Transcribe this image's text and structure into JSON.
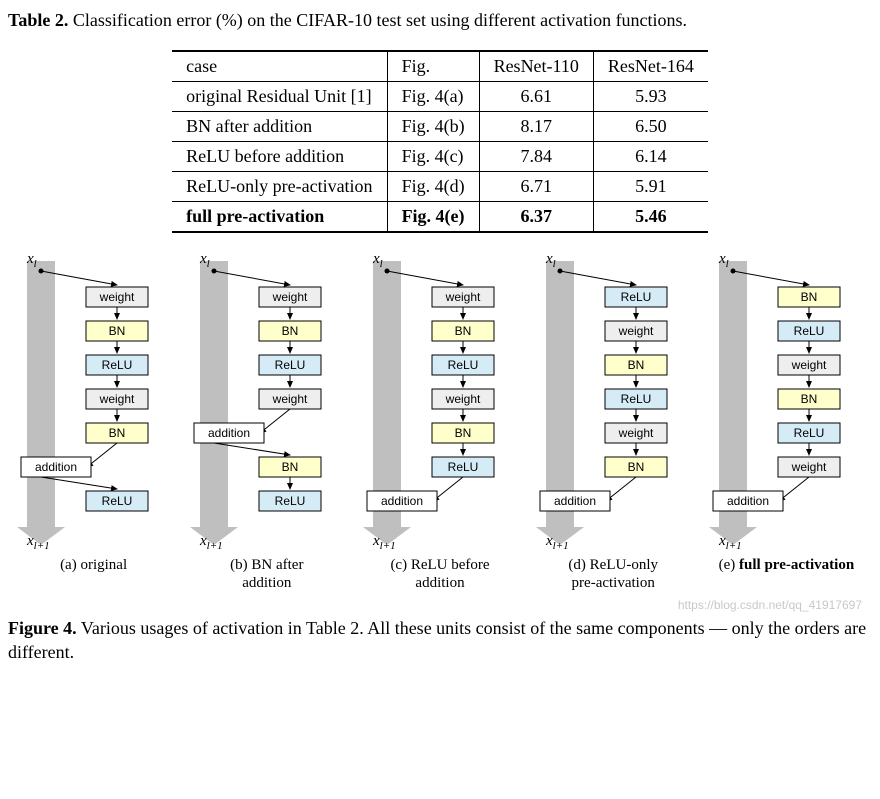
{
  "table": {
    "caption_bold": "Table 2.",
    "caption_rest": " Classification error (%) on the CIFAR-10 test set using different activation functions.",
    "columns": [
      "case",
      "Fig.",
      "ResNet-110",
      "ResNet-164"
    ],
    "rows": [
      {
        "case": "original Residual Unit [1]",
        "fig": "Fig. 4(a)",
        "r110": "6.61",
        "r164": "5.93",
        "bold": false
      },
      {
        "case": "BN after addition",
        "fig": "Fig. 4(b)",
        "r110": "8.17",
        "r164": "6.50",
        "bold": false
      },
      {
        "case": "ReLU before addition",
        "fig": "Fig. 4(c)",
        "r110": "7.84",
        "r164": "6.14",
        "bold": false
      },
      {
        "case": "ReLU-only pre-activation",
        "fig": "Fig. 4(d)",
        "r110": "6.71",
        "r164": "5.91",
        "bold": false
      },
      {
        "case": "full pre-activation",
        "fig": "Fig. 4(e)",
        "r110": "6.37",
        "r164": "5.46",
        "bold": true
      }
    ]
  },
  "figure": {
    "x_in": "x",
    "x_in_sub": "l",
    "x_out": "x",
    "x_out_sub": "l+1",
    "colors": {
      "arrow": "#bfbfbf",
      "stroke": "#000000",
      "weight": "#eeeeee",
      "bn": "#ffffcc",
      "relu": "#d5ecf7",
      "add": "#ffffff",
      "text": "#000000"
    },
    "block_w": 62,
    "block_h": 20,
    "block_fontsize": 12,
    "panels": [
      {
        "label_html": "(a) original",
        "ops": [
          "weight",
          "BN",
          "ReLU",
          "weight",
          "BN",
          "addition",
          "ReLU"
        ],
        "skip_to": 5
      },
      {
        "label_html": "(b) BN after<br>addition",
        "ops": [
          "weight",
          "BN",
          "ReLU",
          "weight",
          "addition",
          "BN",
          "ReLU"
        ],
        "skip_to": 4
      },
      {
        "label_html": "(c) ReLU before<br>addition",
        "ops": [
          "weight",
          "BN",
          "ReLU",
          "weight",
          "BN",
          "ReLU",
          "addition"
        ],
        "skip_to": 6
      },
      {
        "label_html": "(d) ReLU-only<br>pre-activation",
        "ops": [
          "ReLU",
          "weight",
          "BN",
          "ReLU",
          "weight",
          "BN",
          "addition"
        ],
        "skip_to": 6
      },
      {
        "label_html": "(e) <b>full pre-activation</b>",
        "ops": [
          "BN",
          "ReLU",
          "weight",
          "BN",
          "ReLU",
          "weight",
          "addition"
        ],
        "skip_to": 6
      }
    ]
  },
  "figcap": {
    "bold": "Figure 4.",
    "rest": " Various usages of activation in Table 2. All these units consist of the same components — only the orders are different."
  },
  "watermark": "https://blog.csdn.net/qq_41917697"
}
